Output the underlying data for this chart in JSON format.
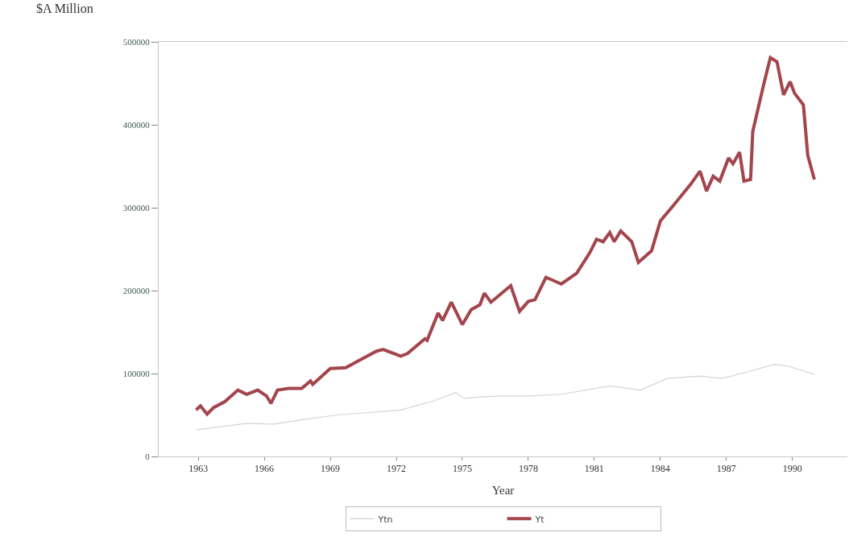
{
  "chart_data": {
    "type": "line",
    "xlabel": "Year",
    "ylabel": "$A Million",
    "xlim": [
      1961.2,
      1992.5
    ],
    "xticks": [
      1963,
      1966,
      1969,
      1972,
      1975,
      1978,
      1981,
      1984,
      1987,
      1990
    ],
    "ylim": [
      0,
      500000
    ],
    "yticks": [
      0,
      100000,
      200000,
      300000,
      400000,
      500000
    ],
    "legend": "bottom",
    "marker": "none",
    "line_style": "solid",
    "series": [
      {
        "name": "Ytn",
        "color": "#d4d4d4",
        "x": [
          1962.9,
          1965.2,
          1966.4,
          1967.9,
          1969.3,
          1972.2,
          1973.7,
          1974.7,
          1975.1,
          1975.9,
          1976.9,
          1978.1,
          1979.5,
          1981.7,
          1983.1,
          1984.3,
          1985.8,
          1986.8,
          1987.8,
          1989.2,
          1989.8,
          1991.0
        ],
        "values": [
          32000,
          40000,
          39000,
          45000,
          50000,
          56000,
          67000,
          77000,
          70000,
          72000,
          73000,
          73000,
          75000,
          85000,
          80000,
          94000,
          97000,
          94000,
          101000,
          111000,
          109000,
          99000
        ]
      },
      {
        "name": "Yt",
        "color": "#a3454c",
        "x": [
          1962.9,
          1963.1,
          1963.4,
          1963.7,
          1964.2,
          1964.8,
          1965.2,
          1965.7,
          1966.1,
          1966.3,
          1966.6,
          1967.1,
          1967.7,
          1968.1,
          1968.2,
          1969.0,
          1969.7,
          1970.6,
          1971.1,
          1971.4,
          1972.2,
          1972.5,
          1973.3,
          1973.4,
          1973.9,
          1974.1,
          1974.5,
          1975.0,
          1975.4,
          1975.8,
          1976.0,
          1976.3,
          1977.2,
          1977.6,
          1978.0,
          1978.3,
          1978.8,
          1979.5,
          1980.2,
          1980.8,
          1981.1,
          1981.4,
          1981.7,
          1981.9,
          1982.2,
          1982.7,
          1983.0,
          1983.6,
          1984.0,
          1984.6,
          1985.4,
          1985.8,
          1986.1,
          1986.4,
          1986.7,
          1987.1,
          1987.3,
          1987.6,
          1987.8,
          1988.1,
          1988.2,
          1988.7,
          1989.0,
          1989.3,
          1989.6,
          1989.9,
          1990.1,
          1990.5,
          1990.7,
          1991.0
        ],
        "values": [
          56000,
          61000,
          51000,
          59000,
          66000,
          80000,
          75000,
          80000,
          73000,
          64000,
          80000,
          82000,
          82000,
          91000,
          87000,
          106000,
          107000,
          120000,
          127000,
          129000,
          121000,
          124000,
          142000,
          140000,
          173000,
          164000,
          186000,
          159000,
          177000,
          183000,
          197000,
          186000,
          206000,
          175000,
          187000,
          189000,
          216000,
          208000,
          221000,
          246000,
          262000,
          259000,
          270000,
          259000,
          272000,
          259000,
          234000,
          248000,
          284000,
          303000,
          329000,
          344000,
          320000,
          338000,
          332000,
          360000,
          353000,
          367000,
          332000,
          334000,
          392000,
          449000,
          481000,
          476000,
          436000,
          452000,
          438000,
          424000,
          363000,
          334000
        ]
      }
    ]
  }
}
